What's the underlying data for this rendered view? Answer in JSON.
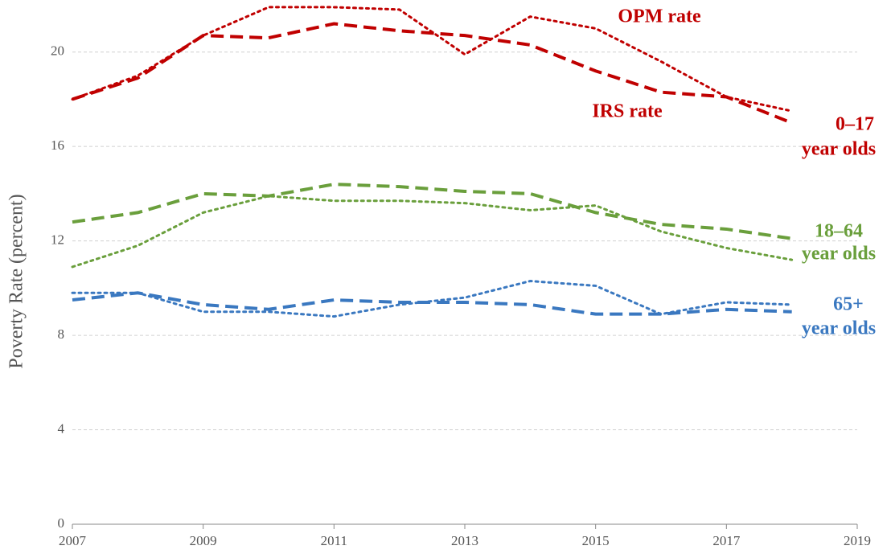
{
  "chart_data": {
    "type": "line",
    "y_label": "Poverty Rate (percent)",
    "x": [
      2007,
      2008,
      2009,
      2010,
      2011,
      2012,
      2013,
      2014,
      2015,
      2016,
      2017,
      2018
    ],
    "xlim": [
      2007,
      2019
    ],
    "xticks": [
      2007,
      2009,
      2011,
      2013,
      2015,
      2017,
      2019
    ],
    "ylim": [
      0,
      22
    ],
    "yticks": [
      0,
      4,
      8,
      12,
      16,
      20
    ],
    "grid": true,
    "series": [
      {
        "color": "#c00000",
        "style": "dashed",
        "values": [
          18.0,
          18.9,
          20.7,
          20.6,
          21.2,
          20.9,
          20.7,
          20.3,
          19.2,
          18.3,
          18.1,
          17.0
        ]
      },
      {
        "color": "#c00000",
        "style": "dotted",
        "values": [
          18.0,
          19.0,
          20.7,
          21.9,
          21.9,
          21.8,
          19.9,
          21.5,
          21.0,
          19.6,
          18.1,
          17.5
        ]
      },
      {
        "color": "#6a9f3c",
        "style": "dashed",
        "values": [
          12.8,
          13.2,
          14.0,
          13.9,
          14.4,
          14.3,
          14.1,
          14.0,
          13.2,
          12.7,
          12.5,
          12.1
        ]
      },
      {
        "color": "#6a9f3c",
        "style": "dotted",
        "values": [
          10.9,
          11.8,
          13.2,
          13.9,
          13.7,
          13.7,
          13.6,
          13.3,
          13.5,
          12.4,
          11.7,
          11.2
        ]
      },
      {
        "color": "#3a78c0",
        "style": "dashed",
        "values": [
          9.5,
          9.8,
          9.3,
          9.1,
          9.5,
          9.4,
          9.4,
          9.3,
          8.9,
          8.9,
          9.1,
          9.0
        ]
      },
      {
        "color": "#3a78c0",
        "style": "dotted",
        "values": [
          9.8,
          9.8,
          9.0,
          9.0,
          8.8,
          9.3,
          9.6,
          10.3,
          10.1,
          8.9,
          9.4,
          9.3
        ]
      }
    ],
    "annotations": [
      {
        "text": "OPM rate",
        "color": "#c00000"
      },
      {
        "text": "IRS rate",
        "color": "#c00000"
      },
      {
        "text": "0–17",
        "color": "#c00000"
      },
      {
        "text": "year olds",
        "color": "#c00000"
      },
      {
        "text": "18–64",
        "color": "#6a9f3c"
      },
      {
        "text": "year olds",
        "color": "#6a9f3c"
      },
      {
        "text": "65+",
        "color": "#3a78c0"
      },
      {
        "text": "year olds",
        "color": "#3a78c0"
      }
    ]
  }
}
